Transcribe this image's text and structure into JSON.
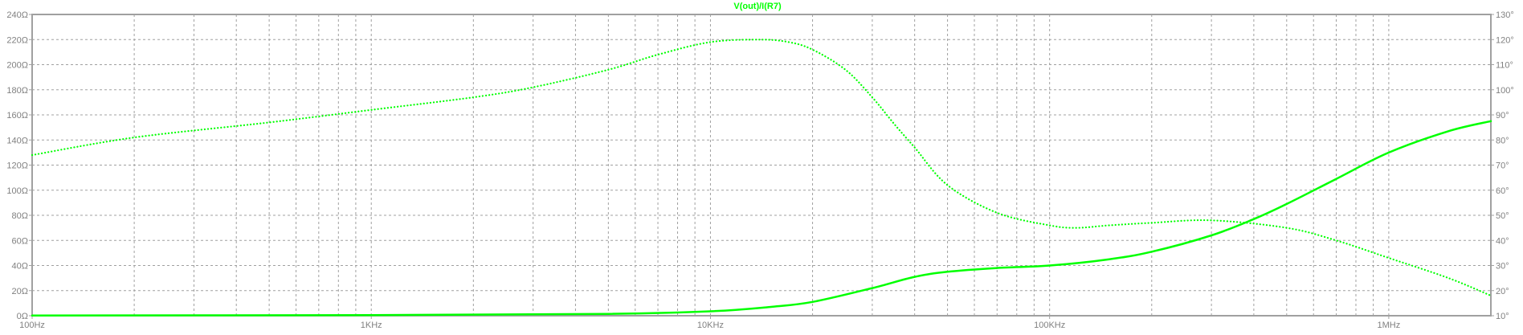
{
  "chart_data": {
    "type": "line",
    "title": "V(out)/I(R7)",
    "x_scale": "log",
    "xlim": [
      100,
      2000000
    ],
    "x_ticks": [
      "100Hz",
      "1KHz",
      "10KHz",
      "100KHz",
      "1MHz"
    ],
    "x_tick_values": [
      100,
      1000,
      10000,
      100000,
      1000000
    ],
    "left_axis": {
      "unit": "Ω",
      "lim": [
        0,
        240
      ],
      "ticks": [
        "0Ω",
        "20Ω",
        "40Ω",
        "60Ω",
        "80Ω",
        "100Ω",
        "120Ω",
        "140Ω",
        "160Ω",
        "180Ω",
        "200Ω",
        "220Ω",
        "240Ω"
      ]
    },
    "right_axis": {
      "unit": "°",
      "lim": [
        10,
        130
      ],
      "ticks": [
        "10°",
        "20°",
        "30°",
        "40°",
        "50°",
        "60°",
        "70°",
        "80°",
        "90°",
        "100°",
        "110°",
        "120°",
        "130°"
      ]
    },
    "grid": true,
    "colors": {
      "trace": "#00ff00",
      "frame": "#a0a0a0",
      "grid": "#a0a0a0",
      "text": "#808080"
    },
    "series": [
      {
        "kind": "magnitude",
        "style": "solid",
        "axis": "left",
        "x": [
          100,
          1000,
          5000,
          10000,
          15000,
          20000,
          30000,
          40000,
          50000,
          70000,
          100000,
          150000,
          200000,
          300000,
          400000,
          500000,
          700000,
          1000000,
          1500000,
          2000000
        ],
        "y": [
          0.2,
          0.5,
          1.5,
          3.5,
          7,
          11,
          22,
          31,
          35,
          38,
          40,
          45,
          51,
          64,
          77,
          89,
          109,
          130,
          147,
          155
        ]
      },
      {
        "kind": "phase",
        "style": "dotted",
        "axis": "right",
        "x": [
          100,
          200,
          500,
          1000,
          2000,
          3000,
          5000,
          7000,
          10000,
          14000,
          17000,
          20000,
          25000,
          30000,
          35000,
          40000,
          50000,
          70000,
          100000,
          120000,
          150000,
          200000,
          300000,
          500000,
          700000,
          1000000,
          1500000,
          2000000
        ],
        "y": [
          74,
          81,
          87,
          92,
          97,
          101,
          108,
          114,
          119,
          120,
          119,
          116,
          108,
          97,
          86,
          77,
          62,
          51,
          46,
          45,
          46,
          47,
          48,
          45,
          40,
          33,
          25,
          18
        ]
      }
    ]
  }
}
